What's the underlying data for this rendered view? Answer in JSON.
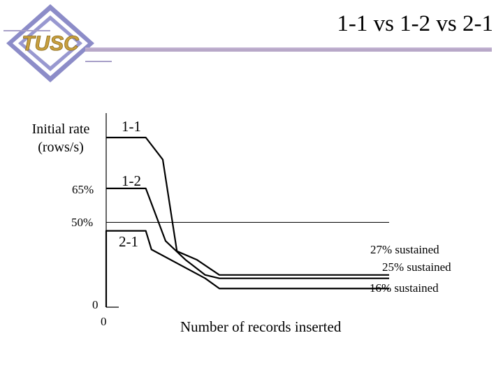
{
  "slide": {
    "title": "1-1 vs 1-2 vs 2-1",
    "logo_text": "TUSC"
  },
  "colors": {
    "logo_frame": "#8c8cc8",
    "logo_fill": "#ffffff",
    "logo_text": "#c8a040",
    "title_rule": "#b8a8c8",
    "rule_dark": "#000000"
  },
  "chart_data": {
    "type": "line",
    "title": "1-1 vs 1-2 vs 2-1",
    "xlabel": "Number of records inserted",
    "ylabel": "Initial rate (rows/s)",
    "x_ticks": [
      "0"
    ],
    "y_ticks": [
      "0",
      "50%",
      "65%"
    ],
    "x_range": [
      0,
      100
    ],
    "y_range": [
      0,
      100
    ],
    "reference_line": {
      "y": 50
    },
    "grid": false,
    "series": [
      {
        "name": "1-1",
        "points": [
          [
            0,
            100
          ],
          [
            14,
            100
          ],
          [
            20,
            87
          ],
          [
            25,
            33
          ],
          [
            32,
            28
          ],
          [
            40,
            19
          ],
          [
            100,
            19
          ]
        ],
        "annotation": "27% sustained"
      },
      {
        "name": "1-2",
        "points": [
          [
            0,
            70
          ],
          [
            14,
            70
          ],
          [
            21,
            39
          ],
          [
            28,
            28
          ],
          [
            35,
            19
          ],
          [
            40,
            17
          ],
          [
            100,
            17
          ]
        ],
        "annotation": "25% sustained"
      },
      {
        "name": "2-1",
        "points": [
          [
            0,
            0
          ],
          [
            0,
            45
          ],
          [
            14,
            45
          ],
          [
            16,
            34
          ],
          [
            35,
            17
          ],
          [
            40,
            11
          ],
          [
            100,
            11
          ]
        ],
        "annotation": "16% sustained"
      }
    ]
  }
}
